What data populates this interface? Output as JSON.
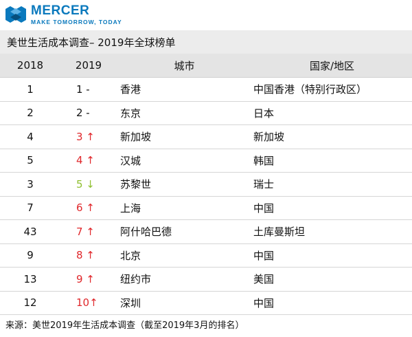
{
  "brand": {
    "name": "MERCER",
    "tagline": "MAKE TOMORROW, TODAY",
    "color": "#0a79bd"
  },
  "title": "美世生活成本调查– 2019年全球榜单",
  "table": {
    "headers": [
      "2018",
      "2019",
      "城市",
      "国家/地区"
    ],
    "rows": [
      {
        "r2018": "1",
        "r2019": "1 -",
        "trend": "same",
        "city": "香港",
        "country": "中国香港（特别行政区）"
      },
      {
        "r2018": "2",
        "r2019": "2 -",
        "trend": "same",
        "city": "东京",
        "country": "日本"
      },
      {
        "r2018": "4",
        "r2019": "3 ↑",
        "trend": "up",
        "city": "新加坡",
        "country": "新加坡"
      },
      {
        "r2018": "5",
        "r2019": "4 ↑",
        "trend": "up",
        "city": "汉城",
        "country": "韩国"
      },
      {
        "r2018": "3",
        "r2019": "5 ↓",
        "trend": "down",
        "city": "苏黎世",
        "country": "瑞士"
      },
      {
        "r2018": "7",
        "r2019": "6 ↑",
        "trend": "up",
        "city": "上海",
        "country": "中国"
      },
      {
        "r2018": "43",
        "r2019": "7 ↑",
        "trend": "up",
        "city": "阿什哈巴德",
        "country": "土库曼斯坦"
      },
      {
        "r2018": "9",
        "r2019": "8 ↑",
        "trend": "up",
        "city": "北京",
        "country": "中国"
      },
      {
        "r2018": "13",
        "r2019": "9 ↑",
        "trend": "up",
        "city": "纽约市",
        "country": "美国"
      },
      {
        "r2018": "12",
        "r2019": "10↑",
        "trend": "up",
        "city": "深圳",
        "country": "中国"
      }
    ]
  },
  "colors": {
    "up": "#e0272b",
    "down": "#8fbf2f",
    "header_bg": "#e4e4e4",
    "title_bg": "#ececec"
  },
  "footer": "来源：美世2019年生活成本调查（截至2019年3月的排名）"
}
